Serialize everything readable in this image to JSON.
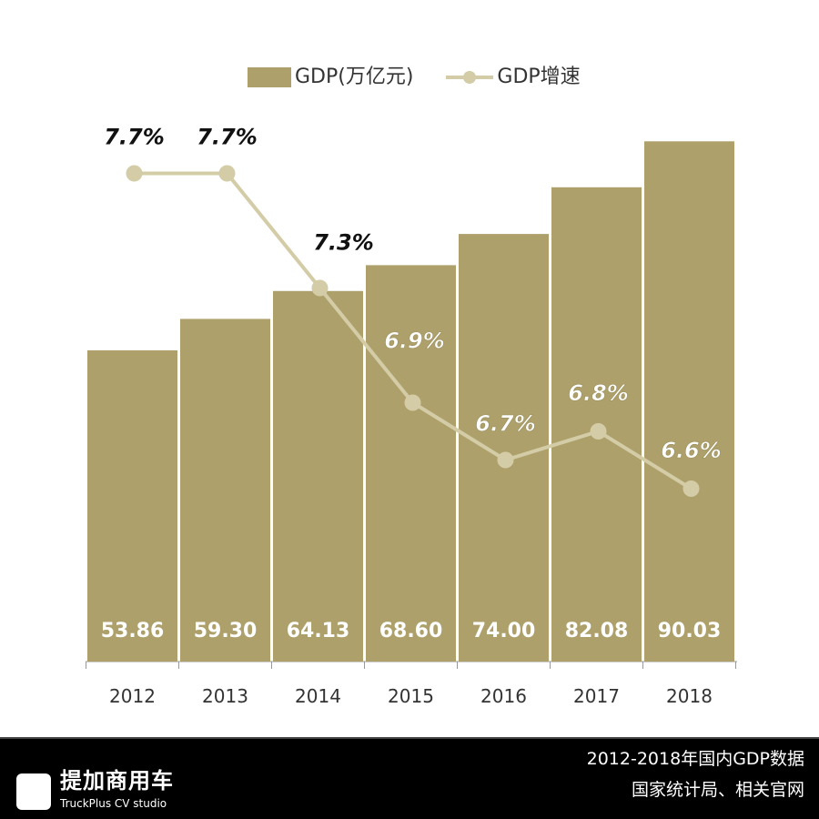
{
  "chart_data": {
    "type": "bar+line",
    "categories": [
      "2012",
      "2013",
      "2014",
      "2015",
      "2016",
      "2017",
      "2018"
    ],
    "series": [
      {
        "name": "GDP(万亿元)",
        "type": "bar",
        "values": [
          53.86,
          59.3,
          64.13,
          68.6,
          74.0,
          82.08,
          90.03
        ],
        "labels": [
          "53.86",
          "59.30",
          "64.13",
          "68.60",
          "74.00",
          "82.08",
          "90.03"
        ],
        "color": "#ada06b"
      },
      {
        "name": "GDP增速",
        "type": "line",
        "values": [
          7.7,
          7.7,
          7.3,
          6.9,
          6.7,
          6.8,
          6.6
        ],
        "labels": [
          "7.7%",
          "7.7%",
          "7.3%",
          "6.9%",
          "6.7%",
          "6.8%",
          "6.6%"
        ],
        "color": "#d3cca6"
      }
    ],
    "ylim": [
      0,
      95
    ],
    "y2lim": [
      6.6,
      7.7
    ],
    "grid": false,
    "legend": "top"
  },
  "footer": {
    "brand": "提加商用车",
    "brand_en": "TruckPlus CV studio",
    "source_line1": "2012-2018年国内GDP数据",
    "source_line2": "国家统计局、相关官网"
  }
}
